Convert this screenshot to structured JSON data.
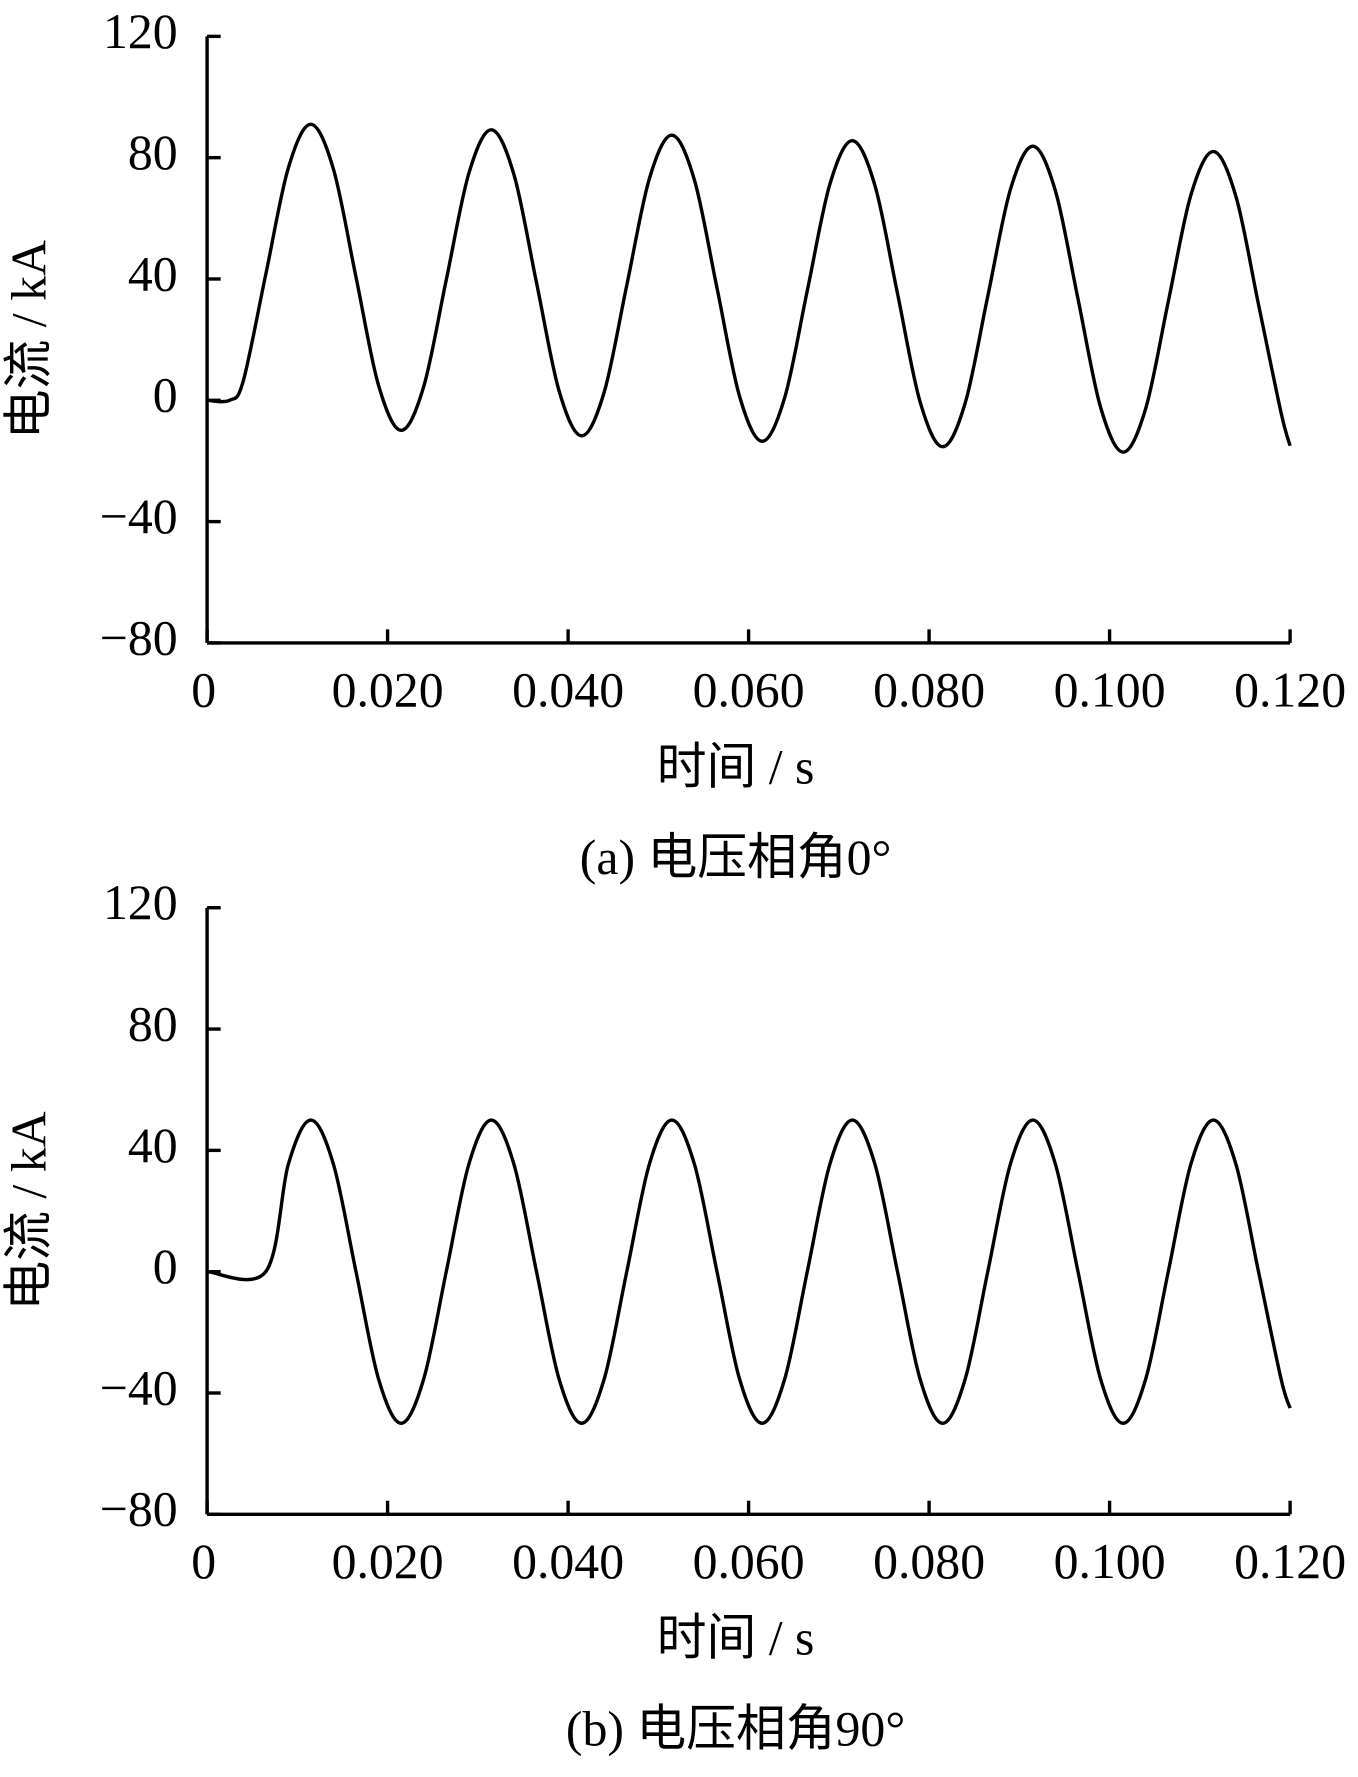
{
  "chart_data": [
    {
      "type": "line",
      "caption": "(a)  电压相角0°",
      "xlabel": "时间 / s",
      "ylabel": "电流 / kA",
      "color": "#000000",
      "x": [
        0,
        0.0025,
        0.004,
        0.0065,
        0.009,
        0.0115,
        0.014,
        0.0165,
        0.019,
        0.0215,
        0.024,
        0.0265,
        0.029,
        0.0315,
        0.034,
        0.0365,
        0.039,
        0.0415,
        0.044,
        0.0465,
        0.049,
        0.0515,
        0.054,
        0.0565,
        0.059,
        0.0615,
        0.064,
        0.0665,
        0.069,
        0.0715,
        0.074,
        0.0765,
        0.079,
        0.0815,
        0.084,
        0.0865,
        0.089,
        0.0915,
        0.094,
        0.0965,
        0.099,
        0.1015,
        0.104,
        0.1065,
        0.109,
        0.1115,
        0.114,
        0.1165,
        0.119,
        0.12
      ],
      "values": [
        0,
        0,
        6.3,
        41.5,
        76.6,
        91.0,
        76.2,
        40.6,
        4.9,
        -9.9,
        4.5,
        39.7,
        74.8,
        89.2,
        74.4,
        38.8,
        3.1,
        -11.7,
        2.7,
        37.9,
        73.0,
        87.4,
        72.6,
        37.0,
        1.3,
        -13.5,
        0.9,
        36.1,
        71.2,
        85.6,
        70.8,
        35.2,
        -0.5,
        -15.3,
        -0.9,
        34.3,
        69.4,
        83.8,
        69.0,
        33.4,
        -2.3,
        -17.1,
        -2.7,
        32.5,
        67.6,
        82.0,
        67.2,
        31.6,
        -4.1,
        -15
      ],
      "xlim": [
        0,
        0.12
      ],
      "ylim": [
        -80,
        120
      ],
      "xticks": [
        0,
        {
          "value": 0.02,
          "label": "0.020"
        },
        {
          "value": 0.04,
          "label": "0.040"
        },
        {
          "value": 0.06,
          "label": "0.060"
        },
        {
          "value": 0.08,
          "label": "0.080"
        },
        {
          "value": 0.1,
          "label": "0.100"
        },
        {
          "value": 0.12,
          "label": "0.120"
        }
      ],
      "yticks": [
        {
          "value": -80,
          "label": "−80"
        },
        {
          "value": -40,
          "label": "−40"
        },
        0,
        40,
        80,
        120
      ]
    },
    {
      "type": "line",
      "caption": "(b)  电压相角90°",
      "xlabel": "时间 / s",
      "ylabel": "电流 / kA",
      "color": "#000000",
      "x": [
        0,
        0.0065,
        0.009,
        0.0115,
        0.014,
        0.0165,
        0.019,
        0.0215,
        0.024,
        0.0265,
        0.029,
        0.0315,
        0.034,
        0.0365,
        0.039,
        0.0415,
        0.044,
        0.0465,
        0.049,
        0.0515,
        0.054,
        0.0565,
        0.059,
        0.0615,
        0.064,
        0.0665,
        0.069,
        0.0715,
        0.074,
        0.0765,
        0.079,
        0.0815,
        0.084,
        0.0865,
        0.089,
        0.0915,
        0.094,
        0.0965,
        0.099,
        0.1015,
        0.104,
        0.1065,
        0.109,
        0.1115,
        0.114,
        0.1165,
        0.119,
        0.12
      ],
      "values": [
        0,
        0,
        35.4,
        50,
        35.4,
        0,
        -35.4,
        -50,
        -35.4,
        0,
        35.4,
        50,
        35.4,
        0,
        -35.4,
        -50,
        -35.4,
        0,
        35.4,
        50,
        35.4,
        0,
        -35.4,
        -50,
        -35.4,
        0,
        35.4,
        50,
        35.4,
        0,
        -35.4,
        -50,
        -35.4,
        0,
        35.4,
        50,
        35.4,
        0,
        -35.4,
        -50,
        -35.4,
        0,
        35.4,
        50,
        35.4,
        0,
        -35.4,
        -45
      ],
      "xlim": [
        0,
        0.12
      ],
      "ylim": [
        -80,
        120
      ],
      "xticks": [
        0,
        {
          "value": 0.02,
          "label": "0.020"
        },
        {
          "value": 0.04,
          "label": "0.040"
        },
        {
          "value": 0.06,
          "label": "0.060"
        },
        {
          "value": 0.08,
          "label": "0.080"
        },
        {
          "value": 0.1,
          "label": "0.100"
        },
        {
          "value": 0.12,
          "label": "0.120"
        }
      ],
      "yticks": [
        {
          "value": -80,
          "label": "−80"
        },
        {
          "value": -40,
          "label": "−40"
        },
        0,
        40,
        80,
        120
      ]
    }
  ]
}
